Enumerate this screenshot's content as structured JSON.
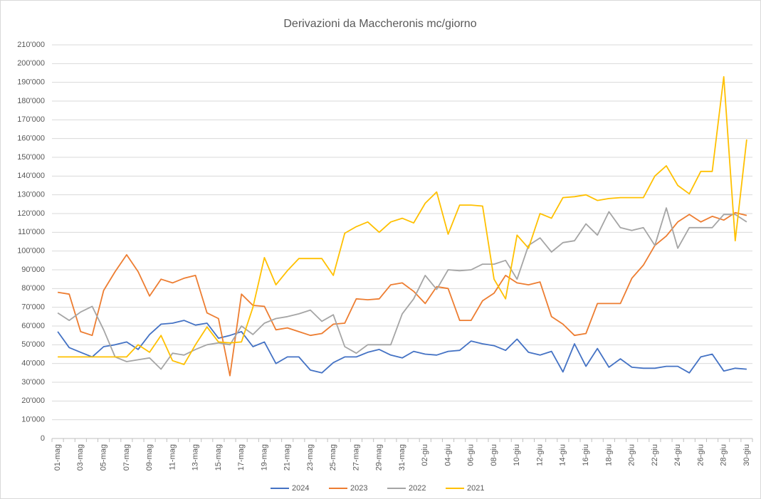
{
  "chart_data": {
    "type": "line",
    "title": "Derivazioni da Maccheronis mc/giorno",
    "categories": [
      "01-mag",
      null,
      "03-mag",
      null,
      "05-mag",
      null,
      "07-mag",
      null,
      "09-mag",
      null,
      "11-mag",
      null,
      "13-mag",
      null,
      "15-mag",
      null,
      "17-mag",
      null,
      "19-mag",
      null,
      "21-mag",
      null,
      "23-mag",
      null,
      "25-mag",
      null,
      "27-mag",
      null,
      "29-mag",
      null,
      "31-mag",
      null,
      "02-giu",
      null,
      "04-giu",
      null,
      "06-giu",
      null,
      "08-giu",
      null,
      "10-giu",
      null,
      "12-giu",
      null,
      "14-giu",
      null,
      "16-giu",
      null,
      "18-giu",
      null,
      "20-giu",
      null,
      "22-giu",
      null,
      "24-giu",
      null,
      "26-giu",
      null,
      "28-giu",
      null,
      "30-giu"
    ],
    "series": [
      {
        "name": "2024",
        "color": "#4472c4",
        "values": [
          57000,
          48500,
          46000,
          43500,
          49000,
          50000,
          51500,
          47500,
          55500,
          61000,
          61500,
          63000,
          60500,
          61500,
          53500,
          55000,
          57000,
          49000,
          51500,
          40000,
          43500,
          43500,
          36500,
          35000,
          40500,
          43500,
          43500,
          46000,
          47500,
          44500,
          43000,
          46500,
          45000,
          44500,
          46500,
          47000,
          52000,
          50500,
          49500,
          47000,
          53000,
          46000,
          44500,
          46500,
          35500,
          50500,
          38500,
          48000,
          38000,
          42500,
          38000,
          37500,
          37500,
          38500,
          38500,
          35000,
          43500,
          45000,
          36000,
          37500,
          37000
        ]
      },
      {
        "name": "2023",
        "color": "#ed7d31",
        "values": [
          78000,
          77000,
          57000,
          55000,
          79000,
          89000,
          98000,
          89000,
          76000,
          85000,
          83000,
          85500,
          87000,
          67000,
          64000,
          33500,
          77000,
          71000,
          70500,
          58000,
          59000,
          57000,
          55000,
          56000,
          61000,
          61500,
          74500,
          74000,
          74500,
          82000,
          83000,
          78500,
          72000,
          81000,
          80000,
          63000,
          63000,
          73500,
          77500,
          87000,
          83000,
          82000,
          83500,
          65000,
          61000,
          55000,
          56000,
          72000,
          72000,
          72000,
          85500,
          92500,
          103000,
          108000,
          115500,
          119500,
          115500,
          118500,
          116500,
          120500,
          119000
        ]
      },
      {
        "name": "2022",
        "color": "#a5a5a5",
        "values": [
          67000,
          63000,
          67500,
          70500,
          58000,
          43500,
          41000,
          42000,
          43000,
          37000,
          45500,
          44500,
          47500,
          50000,
          51000,
          50000,
          60000,
          55500,
          61500,
          64000,
          65000,
          66500,
          68500,
          62500,
          66000,
          49000,
          45500,
          50000,
          50000,
          50000,
          66500,
          74500,
          87000,
          79500,
          90000,
          89500,
          90000,
          93000,
          93000,
          95000,
          85000,
          103000,
          107000,
          99500,
          104500,
          105500,
          114500,
          108500,
          121000,
          112500,
          111000,
          112500,
          103000,
          123000,
          101500,
          112500,
          112500,
          112500,
          119500,
          119500,
          115500
        ]
      },
      {
        "name": "2021",
        "color": "#ffc000",
        "values": [
          43500,
          43500,
          43500,
          43500,
          43500,
          43500,
          43500,
          50000,
          46000,
          55000,
          41500,
          39500,
          50000,
          59500,
          51500,
          51000,
          51500,
          70000,
          96500,
          82000,
          89500,
          96000,
          96000,
          96000,
          87000,
          109500,
          113000,
          115500,
          110000,
          115500,
          117500,
          115000,
          125500,
          131500,
          109000,
          124500,
          124500,
          124000,
          85000,
          74500,
          108500,
          101500,
          120000,
          117500,
          128500,
          129000,
          130000,
          127000,
          128000,
          128500,
          128500,
          128500,
          140000,
          145500,
          135000,
          130500,
          142500,
          142500,
          193000,
          105500,
          159500
        ]
      }
    ],
    "ylim": [
      0,
      210000
    ],
    "yticks": [
      0,
      {
        "value": 10000,
        "label": "10'000"
      },
      {
        "value": 20000,
        "label": "20'000"
      },
      {
        "value": 30000,
        "label": "30'000"
      },
      {
        "value": 40000,
        "label": "40'000"
      },
      {
        "value": 50000,
        "label": "50'000"
      },
      {
        "value": 60000,
        "label": "60'000"
      },
      {
        "value": 70000,
        "label": "70'000"
      },
      {
        "value": 80000,
        "label": "80'000"
      },
      {
        "value": 90000,
        "label": "90'000"
      },
      {
        "value": 100000,
        "label": "100'000"
      },
      {
        "value": 110000,
        "label": "110'000"
      },
      {
        "value": 120000,
        "label": "120'000"
      },
      {
        "value": 130000,
        "label": "130'000"
      },
      {
        "value": 140000,
        "label": "140'000"
      },
      {
        "value": 150000,
        "label": "150'000"
      },
      {
        "value": 160000,
        "label": "160'000"
      },
      {
        "value": 170000,
        "label": "170'000"
      },
      {
        "value": 180000,
        "label": "180'000"
      },
      {
        "value": 190000,
        "label": "190'000"
      },
      {
        "value": 200000,
        "label": "200'000"
      },
      {
        "value": 210000,
        "label": "210'000"
      }
    ],
    "grid": true,
    "legend": "bottom"
  }
}
